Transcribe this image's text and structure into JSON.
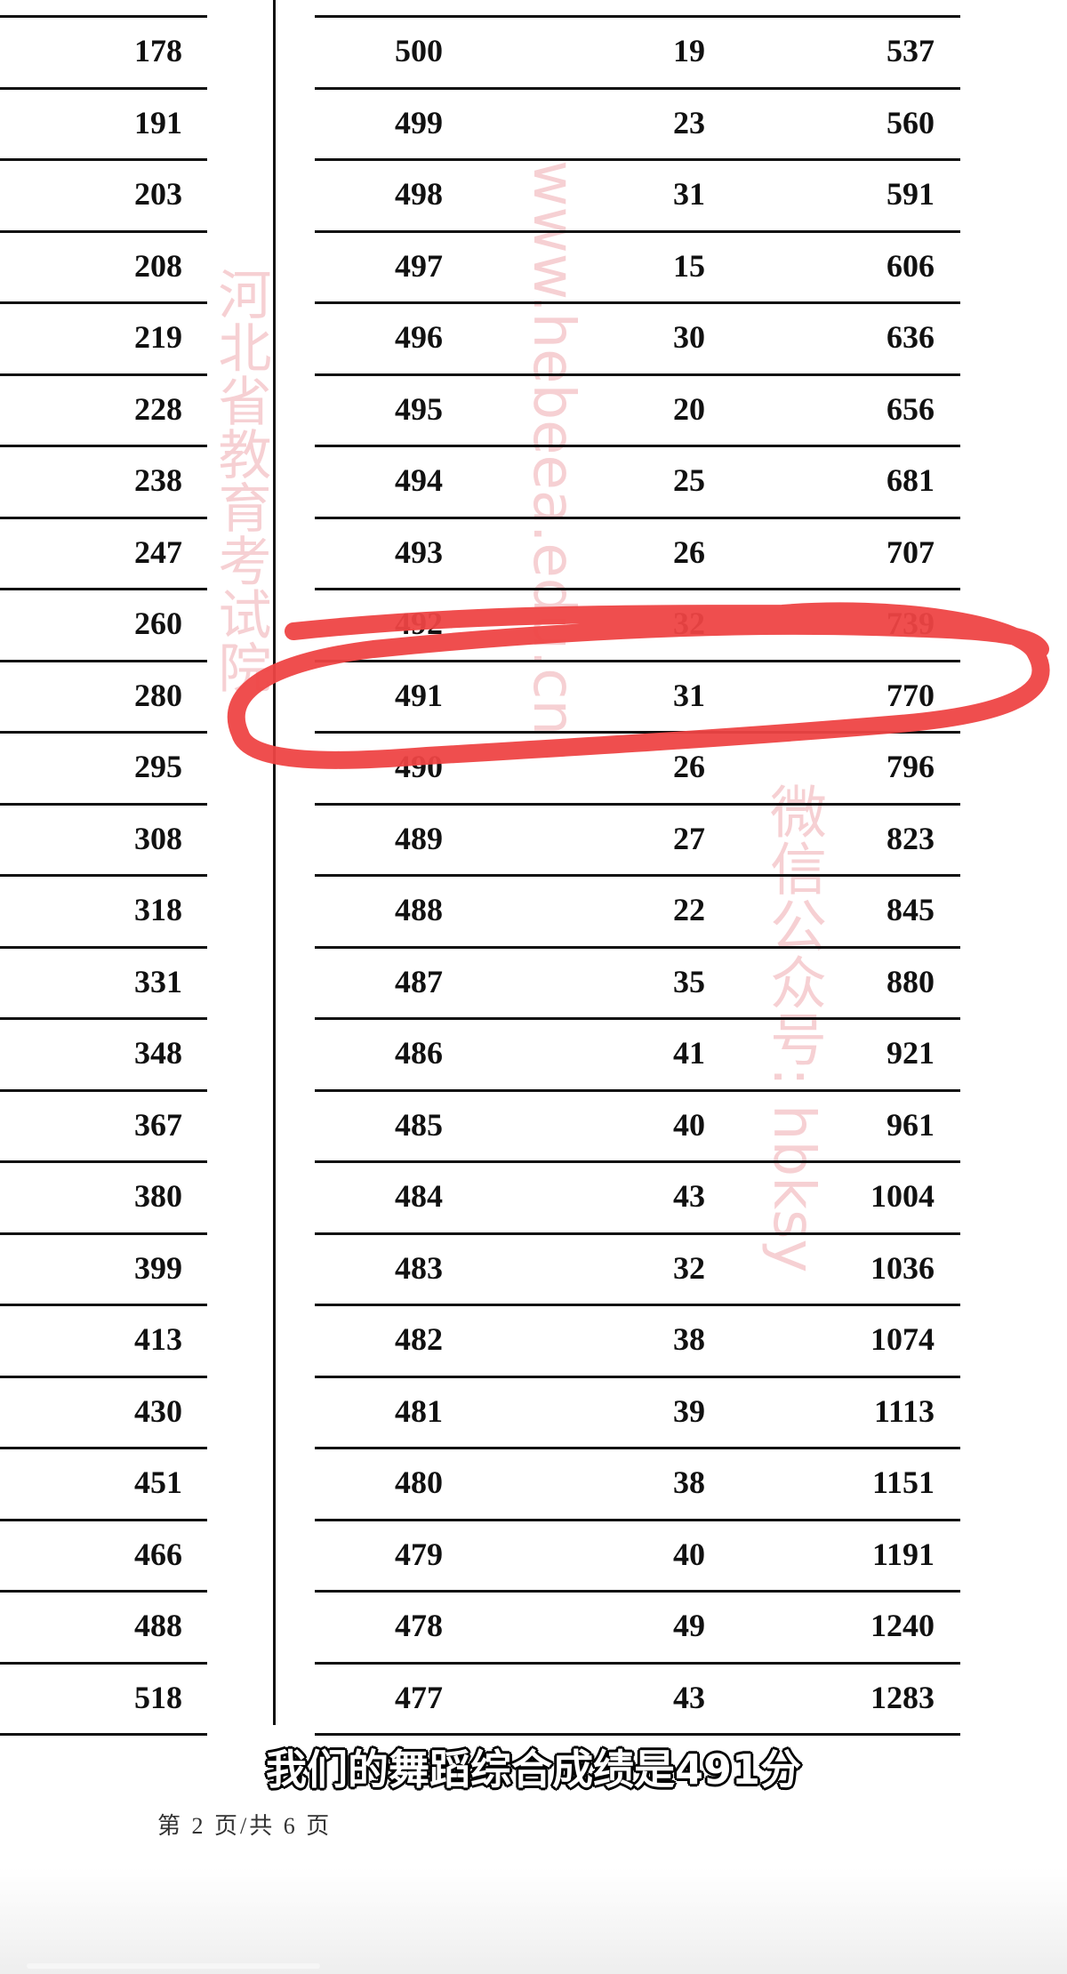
{
  "left_column": {
    "cumulative": [
      "178",
      "191",
      "203",
      "208",
      "219",
      "228",
      "238",
      "247",
      "260",
      "280",
      "295",
      "308",
      "318",
      "331",
      "348",
      "367",
      "380",
      "399",
      "413",
      "430",
      "451",
      "466",
      "488",
      "518"
    ]
  },
  "right_table": {
    "rows": [
      {
        "score": "500",
        "count": "19",
        "cumulative": "537"
      },
      {
        "score": "499",
        "count": "23",
        "cumulative": "560"
      },
      {
        "score": "498",
        "count": "31",
        "cumulative": "591"
      },
      {
        "score": "497",
        "count": "15",
        "cumulative": "606"
      },
      {
        "score": "496",
        "count": "30",
        "cumulative": "636"
      },
      {
        "score": "495",
        "count": "20",
        "cumulative": "656"
      },
      {
        "score": "494",
        "count": "25",
        "cumulative": "681"
      },
      {
        "score": "493",
        "count": "26",
        "cumulative": "707"
      },
      {
        "score": "492",
        "count": "32",
        "cumulative": "739"
      },
      {
        "score": "491",
        "count": "31",
        "cumulative": "770"
      },
      {
        "score": "490",
        "count": "26",
        "cumulative": "796"
      },
      {
        "score": "489",
        "count": "27",
        "cumulative": "823"
      },
      {
        "score": "488",
        "count": "22",
        "cumulative": "845"
      },
      {
        "score": "487",
        "count": "35",
        "cumulative": "880"
      },
      {
        "score": "486",
        "count": "41",
        "cumulative": "921"
      },
      {
        "score": "485",
        "count": "40",
        "cumulative": "961"
      },
      {
        "score": "484",
        "count": "43",
        "cumulative": "1004"
      },
      {
        "score": "483",
        "count": "32",
        "cumulative": "1036"
      },
      {
        "score": "482",
        "count": "38",
        "cumulative": "1074"
      },
      {
        "score": "481",
        "count": "39",
        "cumulative": "1113"
      },
      {
        "score": "480",
        "count": "38",
        "cumulative": "1151"
      },
      {
        "score": "479",
        "count": "40",
        "cumulative": "1191"
      },
      {
        "score": "478",
        "count": "49",
        "cumulative": "1240"
      },
      {
        "score": "477",
        "count": "43",
        "cumulative": "1283"
      }
    ],
    "highlighted_score": "491"
  },
  "watermark": {
    "line1": "河北省教育考试院",
    "line2": "www.hebeea.edu.cn",
    "line3": "微信公众号: hbksy"
  },
  "footer": {
    "page_label": "第 2 页/共 6 页"
  },
  "subtitle": "我们的舞蹈综合成绩是491分",
  "colors": {
    "highlight_stroke": "#ee4444",
    "watermark": "#e67882"
  }
}
